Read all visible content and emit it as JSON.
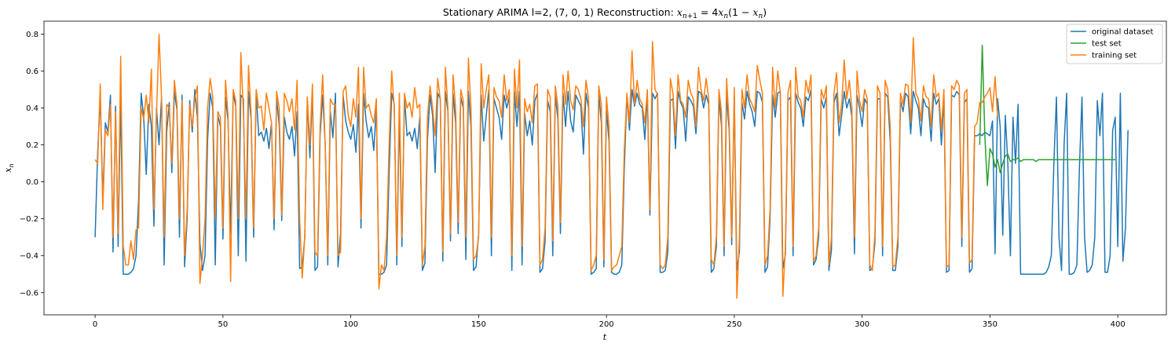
{
  "chart_data": {
    "type": "line",
    "title": "Stationary ARIMA l=2, (7, 0, 1) Reconstruction: x_{n+1} = 4x_n(1 − x_n)",
    "title_prefix": "Stationary ARIMA l=2, (7, 0, 1) Reconstruction: ",
    "xlabel": "t",
    "ylabel": "x_n",
    "xlim": [
      -20,
      419
    ],
    "ylim": [
      -0.72,
      0.87
    ],
    "xticks": [
      0,
      50,
      100,
      150,
      200,
      250,
      300,
      350,
      400
    ],
    "yticks": [
      -0.6,
      -0.4,
      -0.2,
      0.0,
      0.2,
      0.4,
      0.6,
      0.8
    ],
    "ytick_labels": [
      "−0.6",
      "−0.4",
      "−0.2",
      "0.0",
      "0.2",
      "0.4",
      "0.6",
      "0.8"
    ],
    "grid": false,
    "legend_position": "top-right",
    "series": [
      {
        "name": "original dataset",
        "color": "#1f77b4",
        "x_start": 0,
        "values": [
          -0.3,
          0.16,
          0.46,
          -0.1,
          0.32,
          0.27,
          0.47,
          -0.38,
          0.41,
          -0.35,
          0.46,
          -0.5,
          -0.5,
          -0.5,
          -0.49,
          -0.47,
          -0.4,
          -0.1,
          0.48,
          0.35,
          0.04,
          0.42,
          0.3,
          -0.24,
          0.4,
          0.2,
          0.46,
          -0.45,
          0.27,
          0.43,
          0.05,
          0.49,
          0.39,
          -0.3,
          0.47,
          -0.46,
          -0.2,
          0.44,
          0.27,
          0.5,
          0.35,
          -0.33,
          -0.48,
          -0.4,
          0.23,
          0.48,
          0.4,
          -0.45,
          0.36,
          0.3,
          -0.31,
          0.46,
          0.33,
          -0.28,
          0.48,
          0.41,
          -0.4,
          0.47,
          0.45,
          -0.43,
          0.49,
          0.34,
          -0.3,
          0.48,
          0.25,
          0.27,
          0.22,
          0.29,
          0.18,
          0.32,
          -0.26,
          0.45,
          0.31,
          -0.21,
          0.35,
          0.27,
          0.23,
          0.3,
          0.14,
          0.38,
          -0.47,
          -0.46,
          -0.3,
          0.44,
          0.13,
          0.5,
          -0.48,
          -0.46,
          0.25,
          0.47,
          0.2,
          -0.45,
          0.38,
          0.24,
          0.48,
          -0.46,
          -0.28,
          0.47,
          0.33,
          0.27,
          0.23,
          0.31,
          0.16,
          0.42,
          -0.25,
          0.48,
          0.33,
          0.24,
          0.3,
          0.17,
          0.4,
          -0.5,
          -0.5,
          -0.49,
          -0.45,
          0.05,
          0.48,
          0.42,
          -0.45,
          0.38,
          -0.35,
          0.46,
          0.25,
          0.27,
          0.22,
          0.29,
          0.18,
          0.35,
          -0.48,
          -0.44,
          0.23,
          0.47,
          0.36,
          0.05,
          0.48,
          0.45,
          -0.43,
          0.49,
          0.38,
          -0.32,
          0.48,
          0.32,
          -0.28,
          0.46,
          0.4,
          -0.42,
          0.49,
          0.3,
          -0.48,
          -0.46,
          -0.28,
          0.47,
          0.22,
          0.36,
          0.5,
          -0.4,
          0.45,
          0.4,
          0.35,
          0.23,
          0.47,
          0.4,
          0.46,
          -0.48,
          0.49,
          0.3,
          0.49,
          -0.45,
          0.37,
          0.25,
          0.33,
          0.2,
          0.44,
          0.48,
          -0.49,
          -0.47,
          -0.32,
          0.44,
          0.38,
          -0.4,
          0.47,
          0.34,
          -0.28,
          0.48,
          0.3,
          0.49,
          0.33,
          0.27,
          0.47,
          0.44,
          0.41,
          0.15,
          0.48,
          0.4,
          -0.5,
          -0.49,
          -0.47,
          0.48,
          0.32,
          -0.46,
          0.39,
          0.22,
          -0.49,
          -0.5,
          -0.5,
          -0.49,
          -0.45,
          0.08,
          0.47,
          0.28,
          0.5,
          0.41,
          0.48,
          0.42,
          0.4,
          0.23,
          0.47,
          -0.18,
          0.48,
          0.45,
          0.48,
          -0.49,
          -0.49,
          -0.48,
          -0.38,
          0.44,
          0.45,
          0.18,
          0.49,
          0.43,
          0.4,
          0.22,
          0.46,
          0.44,
          0.41,
          0.26,
          0.49,
          0.48,
          0.4,
          0.47,
          0.42,
          -0.49,
          -0.47,
          -0.35,
          0.46,
          0.3,
          -0.4,
          0.47,
          0.28,
          -0.34,
          0.46,
          -0.48,
          -0.38,
          0.43,
          0.34,
          0.49,
          0.42,
          0.38,
          0.3,
          0.49,
          0.48,
          0.43,
          -0.49,
          -0.46,
          -0.2,
          0.47,
          0.35,
          0.48,
          0.49,
          -0.47,
          -0.39,
          0.44,
          0.46,
          -0.4,
          0.48,
          0.43,
          0.4,
          0.3,
          0.46,
          0.44,
          0.5,
          -0.45,
          -0.42,
          -0.3,
          0.45,
          0.4,
          0.46,
          -0.48,
          -0.37,
          0.43,
          0.48,
          0.25,
          0.36,
          0.49,
          0.4,
          0.45,
          0.35,
          -0.39,
          0.47,
          0.4,
          0.3,
          0.45,
          0.42,
          -0.48,
          -0.47,
          -0.33,
          0.45,
          0.45,
          -0.4,
          0.48,
          0.46,
          0.22,
          -0.48,
          -0.48,
          -0.35,
          0.44,
          0.38,
          0.48,
          0.46,
          0.26,
          0.49,
          0.44,
          0.4,
          0.25,
          0.45,
          0.41,
          0.4,
          0.22,
          0.48,
          0.42,
          0.45,
          0.2,
          0.46,
          -0.49,
          -0.48,
          0.47,
          0.46,
          0.49,
          0.47,
          -0.35,
          0.43,
          0.45,
          -0.49,
          -0.47,
          0.25,
          0.25,
          0.26,
          0.25,
          0.27,
          0.26,
          0.25,
          0.33,
          -0.39,
          0.45,
          0.3,
          -0.29,
          0.36,
          0.1,
          -0.4,
          0.35,
          0.1,
          0.42,
          -0.5,
          -0.5,
          -0.5,
          -0.5,
          -0.5,
          -0.5,
          -0.5,
          -0.5,
          -0.5,
          -0.5,
          -0.49,
          -0.46,
          -0.4,
          0.1,
          0.46,
          -0.3,
          -0.48,
          0.2,
          0.48,
          -0.5,
          -0.5,
          -0.49,
          -0.45,
          0.08,
          0.46,
          -0.3,
          -0.49,
          -0.48,
          -0.45,
          -0.3,
          0.44,
          0.25,
          0.48,
          -0.49,
          -0.49,
          -0.4,
          0.28,
          0.35,
          -0.35,
          0.48,
          -0.43,
          -0.25,
          0.28
        ]
      },
      {
        "name": "test set",
        "color": "#2ca02c",
        "x_start": 346,
        "values": [
          0.2,
          0.74,
          0.25,
          -0.02,
          0.18,
          0.15,
          0.08,
          0.12,
          0.05,
          0.1,
          0.14,
          0.15,
          0.11,
          0.12,
          0.12,
          0.13,
          0.11,
          0.12,
          0.12,
          0.12,
          0.12,
          0.12,
          0.11,
          0.12,
          0.12,
          0.12,
          0.12,
          0.12,
          0.12,
          0.12,
          0.12,
          0.12,
          0.12,
          0.12,
          0.12,
          0.12,
          0.12,
          0.12,
          0.12,
          0.12,
          0.12,
          0.12,
          0.12,
          0.12,
          0.12,
          0.12,
          0.12,
          0.12,
          0.12,
          0.12,
          0.12,
          0.12,
          0.12,
          0.12
        ]
      },
      {
        "name": "training set",
        "color": "#ff7f0e",
        "x_start": 0,
        "values": [
          0.12,
          0.1,
          0.53,
          -0.15,
          0.28,
          0.25,
          0.42,
          -0.3,
          0.38,
          -0.28,
          0.68,
          -0.35,
          -0.45,
          -0.45,
          -0.32,
          -0.42,
          -0.26,
          -0.25,
          0.4,
          0.34,
          0.47,
          0.32,
          0.61,
          -0.15,
          0.36,
          0.8,
          0.45,
          -0.3,
          0.42,
          0.4,
          0.1,
          0.55,
          0.42,
          -0.2,
          0.44,
          -0.4,
          -0.15,
          0.42,
          0.3,
          0.45,
          0.52,
          -0.55,
          -0.4,
          -0.2,
          0.4,
          0.56,
          0.46,
          -0.2,
          0.38,
          0.35,
          -0.25,
          0.55,
          0.36,
          -0.54,
          0.5,
          0.44,
          -0.2,
          0.7,
          0.38,
          -0.2,
          0.63,
          0.37,
          -0.25,
          0.5,
          0.4,
          0.41,
          0.28,
          0.48,
          0.4,
          0.32,
          -0.2,
          0.49,
          0.4,
          -0.18,
          0.48,
          0.44,
          0.38,
          0.45,
          0.28,
          0.55,
          -0.2,
          -0.52,
          -0.3,
          0.46,
          0.2,
          0.53,
          -0.38,
          -0.4,
          0.3,
          0.58,
          0.2,
          -0.4,
          0.45,
          0.42,
          0.42,
          -0.4,
          -0.38,
          0.49,
          0.52,
          0.36,
          0.3,
          0.45,
          0.35,
          0.62,
          -0.2,
          0.62,
          0.4,
          0.42,
          0.36,
          0.32,
          0.45,
          -0.58,
          -0.45,
          -0.48,
          -0.3,
          0.2,
          0.6,
          0.4,
          -0.4,
          0.48,
          -0.3,
          0.48,
          0.4,
          0.43,
          0.35,
          0.51,
          0.4,
          0.42,
          -0.45,
          -0.35,
          0.35,
          0.52,
          0.4,
          0.25,
          0.56,
          0.45,
          -0.38,
          0.62,
          0.4,
          -0.28,
          0.58,
          0.4,
          -0.22,
          0.5,
          0.44,
          -0.3,
          0.67,
          0.4,
          -0.42,
          -0.4,
          -0.3,
          0.64,
          0.4,
          0.5,
          0.58,
          -0.3,
          0.51,
          0.46,
          0.44,
          0.35,
          0.58,
          0.44,
          0.5,
          -0.4,
          0.61,
          0.4,
          0.66,
          -0.35,
          0.45,
          0.38,
          0.42,
          0.32,
          0.52,
          0.53,
          -0.45,
          -0.42,
          -0.25,
          0.5,
          0.46,
          -0.32,
          0.52,
          0.41,
          -0.22,
          0.58,
          0.42,
          0.6,
          0.44,
          0.39,
          0.52,
          0.5,
          0.45,
          0.3,
          0.55,
          0.45,
          -0.48,
          -0.45,
          -0.4,
          0.52,
          0.42,
          -0.42,
          0.46,
          0.3,
          -0.48,
          -0.46,
          -0.45,
          -0.4,
          -0.35,
          0.18,
          0.48,
          0.32,
          0.71,
          0.42,
          0.55,
          0.45,
          0.42,
          0.32,
          0.5,
          -0.15,
          0.76,
          0.5,
          0.47,
          -0.45,
          -0.47,
          -0.45,
          -0.3,
          0.56,
          0.48,
          0.25,
          0.58,
          0.44,
          0.42,
          0.35,
          0.55,
          0.48,
          0.45,
          0.3,
          0.62,
          0.5,
          0.44,
          0.56,
          0.45,
          -0.42,
          -0.45,
          -0.3,
          0.5,
          0.38,
          -0.35,
          0.56,
          0.32,
          -0.3,
          0.51,
          -0.63,
          -0.3,
          0.5,
          0.4,
          0.58,
          0.45,
          0.42,
          0.38,
          0.63,
          0.55,
          0.48,
          -0.45,
          -0.4,
          -0.15,
          0.62,
          0.4,
          0.6,
          0.48,
          -0.62,
          -0.35,
          0.48,
          0.55,
          -0.35,
          0.62,
          0.46,
          0.44,
          0.35,
          0.55,
          0.48,
          0.58,
          -0.43,
          -0.4,
          -0.25,
          0.5,
          0.45,
          0.52,
          -0.45,
          -0.3,
          0.48,
          0.59,
          0.32,
          0.42,
          0.66,
          0.45,
          0.55,
          0.4,
          -0.3,
          0.6,
          0.44,
          0.38,
          0.5,
          0.45,
          -0.45,
          -0.48,
          -0.28,
          0.52,
          0.48,
          -0.35,
          0.55,
          0.5,
          0.3,
          -0.46,
          -0.45,
          -0.3,
          0.48,
          0.42,
          0.53,
          0.52,
          0.32,
          0.78,
          0.48,
          0.45,
          0.33,
          0.52,
          0.46,
          0.45,
          0.3,
          0.58,
          0.46,
          0.48,
          0.28,
          0.5,
          -0.46,
          -0.45,
          0.52,
          0.5,
          0.55,
          0.52,
          -0.3,
          0.48,
          0.5,
          -0.44,
          -0.42,
          0.3,
          0.32,
          0.43,
          0.43,
          0.46,
          0.48,
          0.51,
          0.38,
          0.57,
          0.35
        ]
      }
    ]
  }
}
